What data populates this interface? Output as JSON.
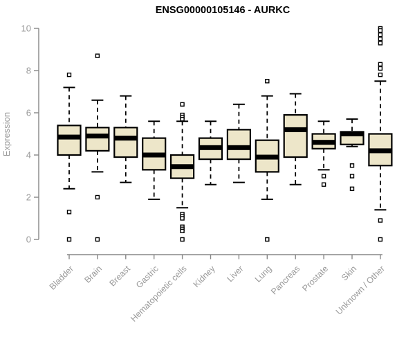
{
  "chart_data": {
    "type": "boxplot",
    "title": "ENSG00000105146 - AURKC",
    "ylabel": "Expression",
    "xlabel": "",
    "ylim": [
      0,
      10
    ],
    "yticks": [
      0,
      2,
      4,
      6,
      8,
      10
    ],
    "grid": "off",
    "legend": "none",
    "categories": [
      "Bladder",
      "Brain",
      "Breast",
      "Gastric",
      "Hematopoietic cells",
      "Kidney",
      "Liver",
      "Lung",
      "Pancreas",
      "Prostate",
      "Skin",
      "Unknown / Other"
    ],
    "boxes": [
      {
        "category": "Bladder",
        "whisker_low": 2.4,
        "q1": 4.0,
        "median": 4.85,
        "q3": 5.4,
        "whisker_high": 7.2,
        "outliers": [
          7.8,
          1.3,
          0
        ]
      },
      {
        "category": "Brain",
        "whisker_low": 3.2,
        "q1": 4.2,
        "median": 4.9,
        "q3": 5.3,
        "whisker_high": 6.6,
        "outliers": [
          8.7,
          2.0,
          0
        ]
      },
      {
        "category": "Breast",
        "whisker_low": 2.7,
        "q1": 3.9,
        "median": 4.8,
        "q3": 5.3,
        "whisker_high": 6.8,
        "outliers": []
      },
      {
        "category": "Gastric",
        "whisker_low": 1.9,
        "q1": 3.3,
        "median": 4.0,
        "q3": 4.8,
        "whisker_high": 5.6,
        "outliers": []
      },
      {
        "category": "Hematopoietic cells",
        "whisker_low": 1.5,
        "q1": 2.9,
        "median": 3.45,
        "q3": 4.0,
        "whisker_high": 5.6,
        "outliers": [
          6.4,
          5.9,
          5.8,
          5.7,
          1.2,
          1.1,
          1.0,
          0.6,
          0.5,
          0.4,
          0
        ]
      },
      {
        "category": "Kidney",
        "whisker_low": 2.6,
        "q1": 3.8,
        "median": 4.35,
        "q3": 4.8,
        "whisker_high": 5.6,
        "outliers": []
      },
      {
        "category": "Liver",
        "whisker_low": 2.7,
        "q1": 3.8,
        "median": 4.35,
        "q3": 5.2,
        "whisker_high": 6.4,
        "outliers": []
      },
      {
        "category": "Lung",
        "whisker_low": 1.9,
        "q1": 3.2,
        "median": 3.9,
        "q3": 4.7,
        "whisker_high": 6.8,
        "outliers": [
          7.5,
          0
        ]
      },
      {
        "category": "Pancreas",
        "whisker_low": 2.6,
        "q1": 3.9,
        "median": 5.2,
        "q3": 5.9,
        "whisker_high": 6.9,
        "outliers": []
      },
      {
        "category": "Prostate",
        "whisker_low": 3.3,
        "q1": 4.3,
        "median": 4.6,
        "q3": 5.0,
        "whisker_high": 5.6,
        "outliers": [
          3.0,
          2.6
        ]
      },
      {
        "category": "Skin",
        "whisker_low": 4.4,
        "q1": 4.5,
        "median": 5.0,
        "q3": 5.1,
        "whisker_high": 5.7,
        "outliers": [
          3.5,
          3.0,
          2.4
        ]
      },
      {
        "category": "Unknown / Other",
        "whisker_low": 1.4,
        "q1": 3.5,
        "median": 4.2,
        "q3": 5.0,
        "whisker_high": 7.5,
        "outliers": [
          10.0,
          9.9,
          9.7,
          9.5,
          9.3,
          8.3,
          8.1,
          7.8,
          0.9,
          0
        ]
      }
    ],
    "colors": {
      "box_fill": "#EDE6C9",
      "box_stroke": "#000000",
      "median": "#000000",
      "whisker": "#000000",
      "outlier_fill": "#ffffff",
      "outlier_stroke": "#000000",
      "axis": "#878787",
      "tick_text": "#999999",
      "title_text": "#000000",
      "background": "#ffffff"
    }
  }
}
